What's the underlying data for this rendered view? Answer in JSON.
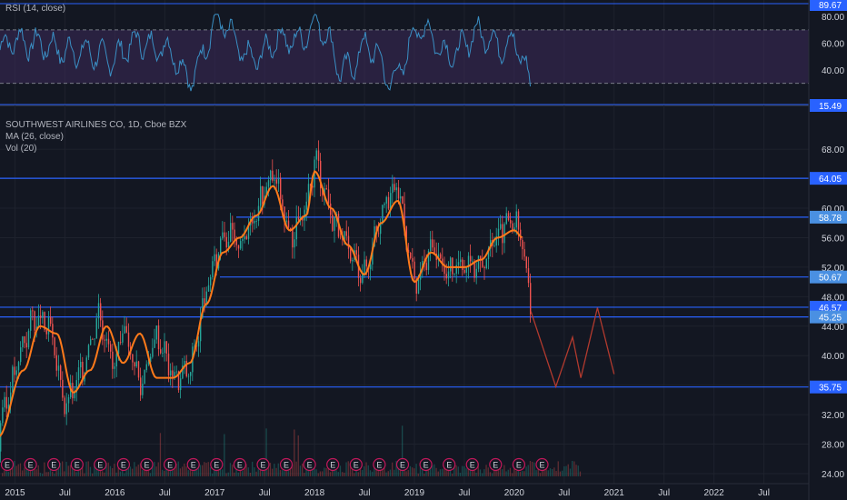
{
  "legend": {
    "rsi": "RSI (14, close)",
    "symbol": "SOUTHWEST AIRLINES CO, 1D, Cboe BZX",
    "ma": "MA (26, close)",
    "vol": "Vol (20)"
  },
  "colors": {
    "background": "#131722",
    "grid": "#1e222d",
    "candle_up": "#26a69a",
    "candle_down": "#ef5350",
    "ma": "#ff7a1a",
    "rsi_line": "#3a8fc4",
    "rsi_band": "#3c2a5a",
    "hline": "#2962ff",
    "hline_light": "#4a90e2",
    "forecast": "#b23a2e",
    "axis_text": "#d1d4dc"
  },
  "chart_data": [
    {
      "type": "line",
      "name": "RSI (14, close)",
      "ylim": [
        15.49,
        89.67
      ],
      "y_ticks": [
        20,
        40,
        60,
        80
      ],
      "levels": [
        30,
        70
      ],
      "price_labels": [
        "89.67",
        "80.00",
        "60.00",
        "40.00",
        "15.49"
      ],
      "x": [
        "2015-01",
        "2015-04",
        "2015-07",
        "2015-10",
        "2016-01",
        "2016-04",
        "2016-07",
        "2016-10",
        "2017-01",
        "2017-04",
        "2017-07",
        "2017-10",
        "2018-01",
        "2018-04",
        "2018-07",
        "2018-10",
        "2019-01",
        "2019-04",
        "2019-07",
        "2019-10",
        "2020-01",
        "2020-03"
      ],
      "values": [
        55,
        68,
        45,
        62,
        40,
        70,
        50,
        38,
        72,
        60,
        48,
        66,
        74,
        42,
        58,
        30,
        70,
        55,
        62,
        60,
        68,
        20
      ]
    },
    {
      "type": "line",
      "name": "SOUTHWEST AIRLINES CO, 1D, Cboe BZX",
      "ylim": [
        24,
        69
      ],
      "y_ticks": [
        24,
        28,
        32,
        36,
        40,
        44,
        48,
        52,
        56,
        60,
        64,
        68
      ],
      "y_tick_labels": [
        "24.00",
        "28.00",
        "32.00",
        "36.00",
        "40.00",
        "44.00",
        "48.00",
        "52.00",
        "56.00",
        "60.00",
        "64.00",
        "68.00"
      ],
      "x_tick_labels": [
        "2015",
        "Jul",
        "2016",
        "Jul",
        "2017",
        "Jul",
        "2018",
        "Jul",
        "2019",
        "Jul",
        "2020",
        "Jul",
        "2021",
        "Jul",
        "2022",
        "Jul"
      ],
      "price_series": {
        "x": [
          "2014-10",
          "2014-12",
          "2015-02",
          "2015-03",
          "2015-05",
          "2015-07",
          "2015-09",
          "2015-11",
          "2016-01",
          "2016-02",
          "2016-04",
          "2016-06",
          "2016-08",
          "2016-10",
          "2016-12",
          "2017-02",
          "2017-04",
          "2017-06",
          "2017-08",
          "2017-10",
          "2017-12",
          "2018-01",
          "2018-03",
          "2018-05",
          "2018-07",
          "2018-09",
          "2018-11",
          "2019-01",
          "2019-03",
          "2019-05",
          "2019-07",
          "2019-09",
          "2019-11",
          "2020-01",
          "2020-02",
          "2020-03"
        ],
        "values": [
          27,
          34,
          42,
          45,
          44,
          33,
          38,
          46,
          38,
          44,
          36,
          43,
          37,
          38,
          49,
          57,
          55,
          60,
          65,
          56,
          60,
          67,
          59,
          54,
          51,
          60,
          63,
          49,
          55,
          51,
          53,
          52,
          57,
          58,
          55,
          45
        ]
      },
      "ma_series": {
        "name": "MA (26, close)",
        "x": [
          "2014-11",
          "2015-02",
          "2015-04",
          "2015-06",
          "2015-08",
          "2015-10",
          "2015-12",
          "2016-02",
          "2016-04",
          "2016-06",
          "2016-08",
          "2016-10",
          "2016-12",
          "2017-02",
          "2017-04",
          "2017-06",
          "2017-08",
          "2017-10",
          "2017-12",
          "2018-01",
          "2018-03",
          "2018-05",
          "2018-07",
          "2018-09",
          "2018-11",
          "2019-01",
          "2019-03",
          "2019-05",
          "2019-07",
          "2019-09",
          "2019-11",
          "2020-01",
          "2020-02"
        ],
        "values": [
          29,
          38,
          44,
          43,
          35,
          38,
          44,
          39,
          43,
          37,
          37,
          39,
          47,
          54,
          56,
          59,
          63,
          57,
          59,
          65,
          60,
          55,
          51,
          58,
          61,
          50,
          54,
          52,
          52,
          53,
          56,
          57,
          56
        ]
      },
      "horizontal_levels": [
        {
          "value": 64.05,
          "label": "64.05"
        },
        {
          "value": 58.78,
          "label": "58.78"
        },
        {
          "value": 50.67,
          "label": "50.67"
        },
        {
          "value": 46.57,
          "label": "46.57"
        },
        {
          "value": 45.25,
          "label": "45.25"
        },
        {
          "value": 35.75,
          "label": "35.75"
        }
      ],
      "forecast_path": {
        "x": [
          "2020-03",
          "2020-06",
          "2020-08",
          "2020-09",
          "2020-11",
          "2021-01"
        ],
        "values": [
          46,
          35.8,
          42.5,
          37,
          46.5,
          37.5
        ]
      },
      "earnings_marker": "E",
      "earnings_count": 24
    }
  ]
}
